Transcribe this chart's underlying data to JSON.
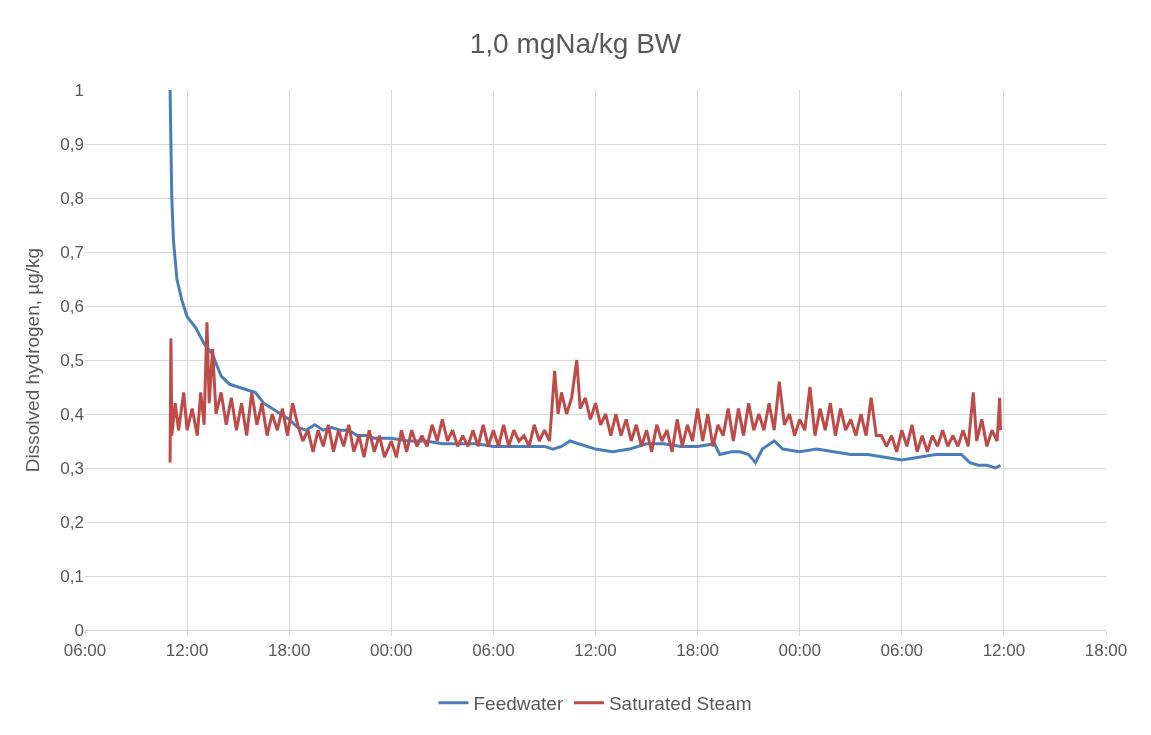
{
  "chart_data": {
    "type": "line",
    "title": "1,0 mgNa/kg BW",
    "ylabel": "Dissolved hydrogen, µg/kg",
    "xlim": [
      "--01-01T06:00",
      "--01-03T18:00"
    ],
    "xticks": [
      {
        "value": "--01-01T06:00",
        "label": "06:00"
      },
      {
        "value": "--01-01T12:00",
        "label": "12:00"
      },
      {
        "value": "--01-01T18:00",
        "label": "18:00"
      },
      {
        "value": "--01-02T00:00",
        "label": "00:00"
      },
      {
        "value": "--01-02T06:00",
        "label": "06:00"
      },
      {
        "value": "--01-02T12:00",
        "label": "12:00"
      },
      {
        "value": "--01-02T18:00",
        "label": "18:00"
      },
      {
        "value": "--01-03T00:00",
        "label": "00:00"
      },
      {
        "value": "--01-03T06:00",
        "label": "06:00"
      },
      {
        "value": "--01-03T12:00",
        "label": "12:00"
      },
      {
        "value": "--01-03T18:00",
        "label": "18:00"
      }
    ],
    "ylim": [
      0,
      1
    ],
    "yticks": [
      0,
      {
        "value": 0.1,
        "label": "0,1"
      },
      {
        "value": 0.2,
        "label": "0,2"
      },
      {
        "value": 0.3,
        "label": "0,3"
      },
      {
        "value": 0.4,
        "label": "0,4"
      },
      {
        "value": 0.5,
        "label": "0,5"
      },
      {
        "value": 0.6,
        "label": "0,6"
      },
      {
        "value": 0.7,
        "label": "0,7"
      },
      {
        "value": 0.8,
        "label": "0,8"
      },
      {
        "value": 0.9,
        "label": "0,9"
      },
      1
    ],
    "grid": true,
    "legend": "bottom",
    "marker": "none",
    "line_style": "solid",
    "series": [
      {
        "name": "Feedwater",
        "color": "#4a7ebb",
        "x": [
          "--01-01T11:00",
          "--01-01T11:03",
          "--01-01T11:06",
          "--01-01T11:12",
          "--01-01T11:24",
          "--01-01T11:42",
          "--01-01T12:00",
          "--01-01T12:30",
          "--01-01T13:00",
          "--01-01T13:30",
          "--01-01T14:00",
          "--01-01T14:30",
          "--01-01T15:00",
          "--01-01T15:30",
          "--01-01T16:00",
          "--01-01T16:30",
          "--01-01T17:00",
          "--01-01T17:30",
          "--01-01T18:00",
          "--01-01T18:30",
          "--01-01T19:00",
          "--01-01T19:30",
          "--01-01T20:00",
          "--01-01T20:30",
          "--01-01T21:00",
          "--01-01T21:30",
          "--01-01T22:00",
          "--01-01T22:30",
          "--01-01T23:00",
          "--01-01T23:30",
          "--01-02T00:00",
          "--01-02T01:00",
          "--01-02T02:00",
          "--01-02T03:00",
          "--01-02T04:00",
          "--01-02T05:00",
          "--01-02T06:00",
          "--01-02T07:00",
          "--01-02T08:00",
          "--01-02T09:00",
          "--01-02T09:30",
          "--01-02T10:00",
          "--01-02T10:30",
          "--01-02T11:00",
          "--01-02T12:00",
          "--01-02T13:00",
          "--01-02T14:00",
          "--01-02T15:00",
          "--01-02T16:00",
          "--01-02T17:00",
          "--01-02T18:00",
          "--01-02T19:00",
          "--01-02T19:18",
          "--01-02T20:00",
          "--01-02T20:30",
          "--01-02T21:00",
          "--01-02T21:24",
          "--01-02T21:48",
          "--01-02T22:30",
          "--01-02T23:00",
          "--01-03T00:00",
          "--01-03T01:00",
          "--01-03T02:00",
          "--01-03T03:00",
          "--01-03T04:00",
          "--01-03T05:00",
          "--01-03T06:00",
          "--01-03T07:00",
          "--01-03T08:00",
          "--01-03T09:00",
          "--01-03T09:30",
          "--01-03T10:00",
          "--01-03T10:30",
          "--01-03T11:00",
          "--01-03T11:30",
          "--01-03T11:48"
        ],
        "values": [
          1.0,
          0.9,
          0.8,
          0.72,
          0.65,
          0.61,
          0.58,
          0.56,
          0.53,
          0.51,
          0.47,
          0.455,
          0.45,
          0.445,
          0.44,
          0.42,
          0.41,
          0.4,
          0.39,
          0.375,
          0.37,
          0.38,
          0.37,
          0.375,
          0.37,
          0.37,
          0.36,
          0.36,
          0.355,
          0.355,
          0.355,
          0.35,
          0.35,
          0.345,
          0.345,
          0.345,
          0.34,
          0.34,
          0.34,
          0.34,
          0.335,
          0.34,
          0.35,
          0.345,
          0.335,
          0.33,
          0.335,
          0.345,
          0.345,
          0.34,
          0.34,
          0.345,
          0.325,
          0.33,
          0.33,
          0.325,
          0.31,
          0.335,
          0.35,
          0.335,
          0.33,
          0.335,
          0.33,
          0.325,
          0.325,
          0.32,
          0.315,
          0.32,
          0.325,
          0.325,
          0.325,
          0.31,
          0.305,
          0.305,
          0.3,
          0.305
        ]
      },
      {
        "name": "Saturated Steam",
        "color": "#be4b48",
        "x": [
          "--01-01T11:00",
          "--01-01T11:03",
          "--01-01T11:06",
          "--01-01T11:18",
          "--01-01T11:30",
          "--01-01T11:48",
          "--01-01T12:00",
          "--01-01T12:18",
          "--01-01T12:36",
          "--01-01T12:48",
          "--01-01T13:00",
          "--01-01T13:10",
          "--01-01T13:18",
          "--01-01T13:30",
          "--01-01T13:42",
          "--01-01T14:00",
          "--01-01T14:18",
          "--01-01T14:36",
          "--01-01T14:54",
          "--01-01T15:12",
          "--01-01T15:30",
          "--01-01T15:48",
          "--01-01T16:06",
          "--01-01T16:24",
          "--01-01T16:42",
          "--01-01T17:00",
          "--01-01T17:18",
          "--01-01T17:36",
          "--01-01T17:54",
          "--01-01T18:12",
          "--01-01T18:30",
          "--01-01T18:48",
          "--01-01T19:06",
          "--01-01T19:24",
          "--01-01T19:42",
          "--01-01T20:00",
          "--01-01T20:18",
          "--01-01T20:36",
          "--01-01T20:54",
          "--01-01T21:12",
          "--01-01T21:30",
          "--01-01T21:48",
          "--01-01T22:06",
          "--01-01T22:24",
          "--01-01T22:42",
          "--01-01T23:00",
          "--01-01T23:18",
          "--01-01T23:36",
          "--01-02T00:00",
          "--01-02T00:18",
          "--01-02T00:36",
          "--01-02T00:54",
          "--01-02T01:12",
          "--01-02T01:30",
          "--01-02T01:48",
          "--01-02T02:06",
          "--01-02T02:24",
          "--01-02T02:42",
          "--01-02T03:00",
          "--01-02T03:18",
          "--01-02T03:36",
          "--01-02T03:54",
          "--01-02T04:12",
          "--01-02T04:30",
          "--01-02T04:48",
          "--01-02T05:06",
          "--01-02T05:24",
          "--01-02T05:42",
          "--01-02T06:00",
          "--01-02T06:18",
          "--01-02T06:36",
          "--01-02T06:54",
          "--01-02T07:12",
          "--01-02T07:30",
          "--01-02T07:48",
          "--01-02T08:06",
          "--01-02T08:24",
          "--01-02T08:42",
          "--01-02T09:00",
          "--01-02T09:18",
          "--01-02T09:36",
          "--01-02T09:48",
          "--01-02T10:00",
          "--01-02T10:18",
          "--01-02T10:36",
          "--01-02T10:54",
          "--01-02T11:06",
          "--01-02T11:24",
          "--01-02T11:42",
          "--01-02T12:00",
          "--01-02T12:18",
          "--01-02T12:36",
          "--01-02T12:54",
          "--01-02T13:12",
          "--01-02T13:30",
          "--01-02T13:48",
          "--01-02T14:06",
          "--01-02T14:24",
          "--01-02T14:42",
          "--01-02T15:00",
          "--01-02T15:18",
          "--01-02T15:36",
          "--01-02T15:54",
          "--01-02T16:12",
          "--01-02T16:30",
          "--01-02T16:48",
          "--01-02T17:06",
          "--01-02T17:24",
          "--01-02T17:42",
          "--01-02T18:00",
          "--01-02T18:18",
          "--01-02T18:36",
          "--01-02T18:54",
          "--01-02T19:12",
          "--01-02T19:30",
          "--01-02T19:48",
          "--01-02T20:06",
          "--01-02T20:24",
          "--01-02T20:42",
          "--01-02T21:00",
          "--01-02T21:18",
          "--01-02T21:36",
          "--01-02T21:54",
          "--01-02T22:12",
          "--01-02T22:30",
          "--01-02T22:48",
          "--01-02T23:06",
          "--01-02T23:24",
          "--01-02T23:42",
          "--01-03T00:00",
          "--01-03T00:18",
          "--01-03T00:36",
          "--01-03T00:54",
          "--01-03T01:12",
          "--01-03T01:30",
          "--01-03T01:48",
          "--01-03T02:06",
          "--01-03T02:24",
          "--01-03T02:42",
          "--01-03T03:00",
          "--01-03T03:18",
          "--01-03T03:36",
          "--01-03T03:54",
          "--01-03T04:12",
          "--01-03T04:30",
          "--01-03T04:48",
          "--01-03T05:06",
          "--01-03T05:24",
          "--01-03T05:42",
          "--01-03T06:00",
          "--01-03T06:18",
          "--01-03T06:36",
          "--01-03T06:54",
          "--01-03T07:12",
          "--01-03T07:30",
          "--01-03T07:48",
          "--01-03T08:06",
          "--01-03T08:24",
          "--01-03T08:42",
          "--01-03T09:00",
          "--01-03T09:18",
          "--01-03T09:36",
          "--01-03T09:54",
          "--01-03T10:12",
          "--01-03T10:24",
          "--01-03T10:42",
          "--01-03T11:00",
          "--01-03T11:18",
          "--01-03T11:36",
          "--01-03T11:45",
          "--01-03T11:48"
        ],
        "values": [
          0.31,
          0.54,
          0.36,
          0.42,
          0.37,
          0.44,
          0.37,
          0.41,
          0.36,
          0.44,
          0.38,
          0.57,
          0.42,
          0.52,
          0.4,
          0.44,
          0.38,
          0.43,
          0.37,
          0.42,
          0.36,
          0.44,
          0.38,
          0.42,
          0.36,
          0.4,
          0.37,
          0.41,
          0.36,
          0.42,
          0.38,
          0.35,
          0.37,
          0.33,
          0.37,
          0.34,
          0.38,
          0.33,
          0.37,
          0.34,
          0.38,
          0.33,
          0.36,
          0.32,
          0.37,
          0.33,
          0.36,
          0.32,
          0.35,
          0.32,
          0.37,
          0.33,
          0.37,
          0.34,
          0.36,
          0.34,
          0.38,
          0.35,
          0.39,
          0.35,
          0.37,
          0.34,
          0.36,
          0.34,
          0.37,
          0.34,
          0.38,
          0.34,
          0.37,
          0.34,
          0.38,
          0.34,
          0.37,
          0.35,
          0.36,
          0.34,
          0.38,
          0.35,
          0.37,
          0.35,
          0.48,
          0.4,
          0.44,
          0.4,
          0.43,
          0.5,
          0.41,
          0.43,
          0.39,
          0.42,
          0.38,
          0.4,
          0.36,
          0.4,
          0.36,
          0.39,
          0.35,
          0.38,
          0.34,
          0.37,
          0.33,
          0.38,
          0.35,
          0.37,
          0.33,
          0.39,
          0.34,
          0.38,
          0.35,
          0.41,
          0.35,
          0.4,
          0.34,
          0.38,
          0.36,
          0.41,
          0.35,
          0.41,
          0.36,
          0.42,
          0.37,
          0.4,
          0.37,
          0.42,
          0.37,
          0.46,
          0.38,
          0.4,
          0.36,
          0.39,
          0.37,
          0.45,
          0.36,
          0.41,
          0.37,
          0.42,
          0.36,
          0.41,
          0.37,
          0.39,
          0.36,
          0.4,
          0.36,
          0.43,
          0.36,
          0.36,
          0.34,
          0.36,
          0.33,
          0.37,
          0.34,
          0.38,
          0.33,
          0.36,
          0.33,
          0.36,
          0.34,
          0.37,
          0.34,
          0.36,
          0.34,
          0.37,
          0.34,
          0.44,
          0.35,
          0.39,
          0.34,
          0.37,
          0.35,
          0.43,
          0.37
        ]
      }
    ]
  }
}
